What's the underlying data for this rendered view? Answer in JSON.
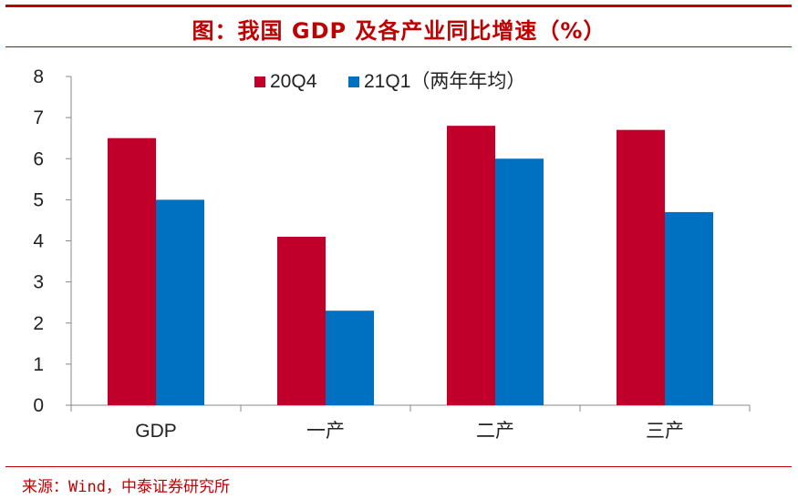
{
  "title": "图：我国 GDP 及各产业同比增速（%）",
  "source": "来源：Wind，中泰证券研究所",
  "colors": {
    "accent": "#c00000",
    "series1": "#c0002a",
    "series2": "#0070c0"
  },
  "chart_data": {
    "type": "bar",
    "title": "图：我国 GDP 及各产业同比增速（%）",
    "xlabel": "",
    "ylabel": "",
    "categories": [
      "GDP",
      "一产",
      "二产",
      "三产"
    ],
    "series": [
      {
        "name": "20Q4",
        "values": [
          6.5,
          4.1,
          6.8,
          6.7
        ]
      },
      {
        "name": "21Q1（两年年均）",
        "values": [
          5.0,
          2.3,
          6.0,
          4.7
        ]
      }
    ],
    "ylim": [
      0,
      8
    ],
    "yticks": [
      0,
      1,
      2,
      3,
      4,
      5,
      6,
      7,
      8
    ],
    "grid": false,
    "legend_position": "top-center"
  }
}
